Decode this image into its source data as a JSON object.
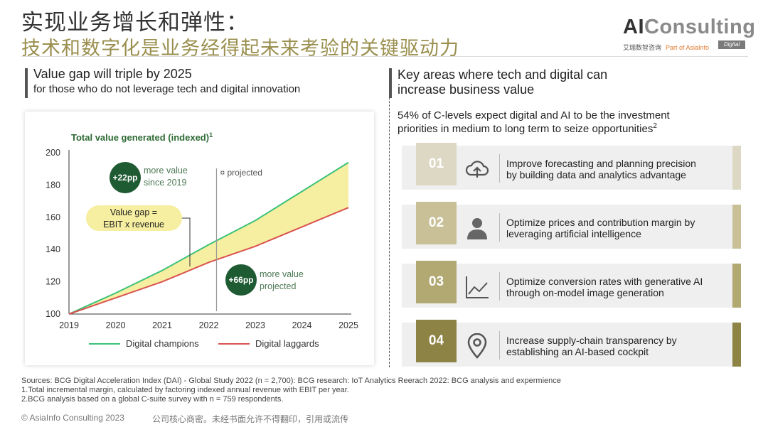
{
  "header": {
    "title_line1": "实现业务增长和弹性：",
    "title_line2": "技术和数字化是业务经得起未来考验的关键驱动力",
    "logo_part1": "AI",
    "logo_part2": "Consulting",
    "logo_cn": "艾瑞数智咨询",
    "logo_part_of": "Part of AsiaInfo",
    "logo_badge": "Digital"
  },
  "left": {
    "heading": "Value gap will triple by 2025",
    "subheading": "for those who do not leverage tech and digital innovation"
  },
  "chart_data": {
    "type": "line",
    "title": "Total value generated (indexed)",
    "title_sup": "1",
    "x": [
      2019,
      2020,
      2021,
      2022,
      2023,
      2024,
      2025
    ],
    "series": [
      {
        "name": "Digital champions",
        "color": "#3cc27a",
        "values": [
          100,
          113,
          127,
          143,
          158,
          176,
          194
        ]
      },
      {
        "name": "Digital laggards",
        "color": "#d9534f",
        "values": [
          100,
          110,
          120,
          132,
          142,
          154,
          166
        ]
      }
    ],
    "ylim": [
      100,
      200
    ],
    "yticks": [
      100,
      120,
      140,
      160,
      180,
      200
    ],
    "fill_color": "#f6eea0",
    "projected_from": 2022,
    "projected_label": "¤ projected",
    "annotations": {
      "since": {
        "badge": "+22pp",
        "line1": "more value",
        "line2": "since 2019"
      },
      "projected": {
        "badge": "+66pp",
        "line1": "more value",
        "line2": "projected"
      },
      "gap": {
        "line1": "Value gap =",
        "line2": "EBIT x revenue"
      }
    },
    "legend_position": "bottom"
  },
  "right": {
    "heading_line1": "Key areas where tech and digital can",
    "heading_line2": "increase business value",
    "stat_line1": "54% of C-levels expect digital and AI to be the investment",
    "stat_line2": "priorities in medium to long term to seize opportunities",
    "stat_sup": "2",
    "areas": [
      {
        "num": "01",
        "icon": "cloud-upload-icon",
        "color": "#ddd8c3",
        "line1": "Improve forecasting and planning precision",
        "line2": "by building data and analytics advantage"
      },
      {
        "num": "02",
        "icon": "person-icon",
        "color": "#c9c098",
        "line1": "Optimize prices and contribution margin by",
        "line2": "leveraging artificial intelligence"
      },
      {
        "num": "03",
        "icon": "line-chart-icon",
        "color": "#b2a872",
        "line1": "Optimize conversion rates with generative AI",
        "line2": "through on-model image generation"
      },
      {
        "num": "04",
        "icon": "map-pin-icon",
        "color": "#8d8344",
        "line1": "Increase supply-chain transparency by",
        "line2": "establishing an AI-based cockpit"
      }
    ]
  },
  "sources": {
    "line1": "Sources: BCG Digital Acceleration Index (DAI) - Global Study 2022 (n = 2,700): BCG research: IoT Analytics Reerach 2022: BCG analysis and expermience",
    "line2": "1.Total incremental margin, calculated by factoring indexed annual revenue with EBIT per year.",
    "line3": "2.BCG analysis based on a global C-suite survey with n = 759 respondents."
  },
  "footer": {
    "copyright": "© AsiaInfo Consulting 2023",
    "confidential": "公司核心商密。未经书面允许不得翻印，引用或流传"
  }
}
